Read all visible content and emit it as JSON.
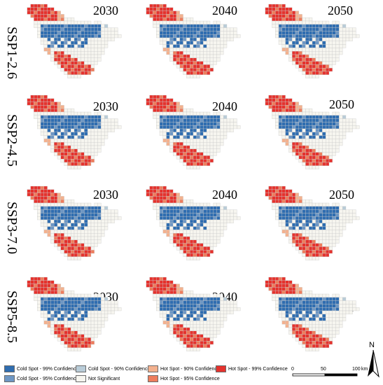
{
  "years": [
    "2030",
    "2040",
    "2050"
  ],
  "scenarios": [
    "SSP1-2.6",
    "SSP2-4.5",
    "SSP3-7.0",
    "SSP5-8.5"
  ],
  "legend": [
    {
      "label": "Cold Spot - 99% Confidence",
      "color": "#2f6db0"
    },
    {
      "label": "Cold Spot - 95% Confidence",
      "color": "#6e97c4"
    },
    {
      "label": "Cold Spot - 90% Confidence",
      "color": "#b9ccd8"
    },
    {
      "label": "Not Significant",
      "color": "#f6f5ef"
    },
    {
      "label": "Hot Spot - 90% Confidence",
      "color": "#f3b18e"
    },
    {
      "label": "Hot Spot - 95% Confidence",
      "color": "#ee7d5c"
    },
    {
      "label": "Hot Spot - 99% Confidence",
      "color": "#e5322d"
    }
  ],
  "north_label": "N",
  "scale": {
    "ticks": [
      "0",
      "50",
      "100"
    ],
    "unit": "km"
  }
}
